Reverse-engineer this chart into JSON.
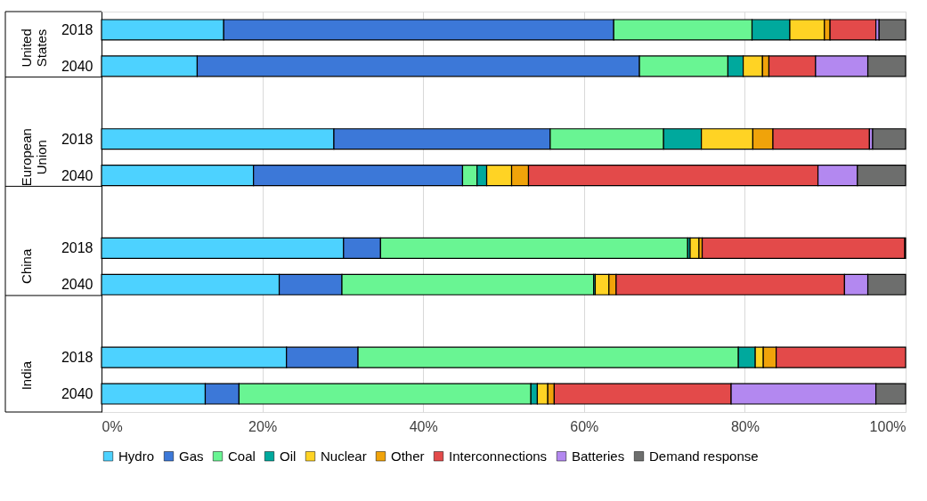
{
  "chart_data": {
    "type": "bar",
    "orientation": "horizontal",
    "stacked": true,
    "categories": [
      "2018",
      "2040",
      null,
      "2018",
      "2040",
      null,
      "2018",
      "2040",
      null,
      "2018",
      "2040"
    ],
    "series": [
      {
        "name": "Hydro",
        "color": "#4dd2ff",
        "values": [
          15.2,
          11.9,
          null,
          28.9,
          18.9,
          null,
          30.1,
          22.1,
          null,
          23.0,
          12.9
        ]
      },
      {
        "name": "Gas",
        "color": "#3c78d8",
        "values": [
          48.5,
          55.0,
          null,
          26.9,
          26.0,
          null,
          4.6,
          7.8,
          null,
          8.9,
          4.2
        ]
      },
      {
        "name": "Coal",
        "color": "#69f593",
        "values": [
          17.2,
          11.0,
          null,
          14.1,
          1.8,
          null,
          38.2,
          31.3,
          null,
          47.3,
          36.3
        ]
      },
      {
        "name": "Oil",
        "color": "#00a99d",
        "values": [
          4.7,
          1.9,
          null,
          4.7,
          1.2,
          null,
          0.3,
          0.2,
          null,
          2.1,
          0.8
        ]
      },
      {
        "name": "Nuclear",
        "color": "#ffd324",
        "values": [
          4.3,
          2.4,
          null,
          6.4,
          3.1,
          null,
          1.1,
          1.7,
          null,
          1.0,
          1.3
        ]
      },
      {
        "name": "Other",
        "color": "#f0a30a",
        "values": [
          0.7,
          0.8,
          null,
          2.5,
          2.1,
          null,
          0.4,
          0.9,
          null,
          1.6,
          0.8
        ]
      },
      {
        "name": "Interconnections",
        "color": "#e34a4a",
        "values": [
          5.7,
          5.8,
          null,
          12.0,
          36.0,
          null,
          25.2,
          28.4,
          null,
          16.1,
          22.0
        ]
      },
      {
        "name": "Batteries",
        "color": "#b388f0",
        "values": [
          0.4,
          6.5,
          null,
          0.4,
          4.9,
          null,
          0,
          2.9,
          null,
          0,
          18.0
        ]
      },
      {
        "name": "Demand response",
        "color": "#6d6e6d",
        "values": [
          3.3,
          4.7,
          null,
          4.1,
          6.0,
          null,
          0.1,
          4.7,
          null,
          0,
          3.7
        ]
      }
    ],
    "xlim": [
      0,
      100
    ],
    "xticks": [
      {
        "value": 0,
        "label": "0%"
      },
      {
        "value": 20,
        "label": "20%"
      },
      {
        "value": 40,
        "label": "40%"
      },
      {
        "value": 60,
        "label": "60%"
      },
      {
        "value": 80,
        "label": "80%"
      },
      {
        "value": 100,
        "label": "100%"
      }
    ],
    "grid": "x",
    "legend": "bottom",
    "annotations": [
      "United States",
      "European Union",
      "China",
      "India"
    ]
  }
}
